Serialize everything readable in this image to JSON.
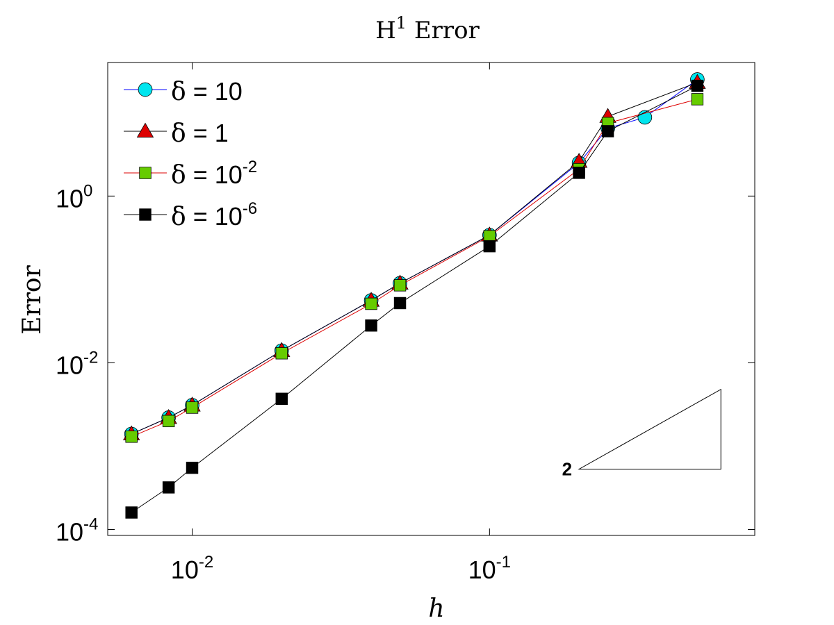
{
  "chart_data": {
    "type": "line",
    "title": {
      "base": "H",
      "sup": "1",
      "rest": " Error"
    },
    "xlabel": "h",
    "ylabel": "Error",
    "xscale": "log",
    "yscale": "log",
    "xlim": [
      0.0052,
      0.78
    ],
    "ylim": [
      8.5e-05,
      40
    ],
    "x_ticks": [
      {
        "value": 0.01,
        "base": "10",
        "exp": "-2"
      },
      {
        "value": 0.1,
        "base": "10",
        "exp": "-1"
      }
    ],
    "y_ticks": [
      {
        "value": 0.0001,
        "base": "10",
        "exp": "-4"
      },
      {
        "value": 0.01,
        "base": "10",
        "exp": "-2"
      },
      {
        "value": 1,
        "base": "10",
        "exp": "0"
      }
    ],
    "legend_position": "top-left",
    "series": [
      {
        "name": {
          "sym": "δ",
          "eq": " = 10",
          "sup": ""
        },
        "color": "#0000ff",
        "marker": "circle",
        "marker_fill": "#00e5ee",
        "x": [
          0.00625,
          0.008333,
          0.01,
          0.02,
          0.04,
          0.05,
          0.1,
          0.2,
          0.25,
          0.333,
          0.5
        ],
        "y": [
          0.0014,
          0.0022,
          0.0031,
          0.014,
          0.056,
          0.09,
          0.34,
          2.5,
          6.5,
          8.8,
          25
        ]
      },
      {
        "name": {
          "sym": "δ",
          "eq": " = 1",
          "sup": ""
        },
        "color": "#000000",
        "marker": "triangle",
        "marker_fill": "#dd0000",
        "x": [
          0.00625,
          0.008333,
          0.01,
          0.02,
          0.04,
          0.05,
          0.1,
          0.2,
          0.25,
          0.5
        ],
        "y": [
          0.0014,
          0.0022,
          0.0031,
          0.014,
          0.056,
          0.09,
          0.34,
          2.6,
          9.0,
          23
        ]
      },
      {
        "name": {
          "sym": "δ",
          "eq": " = 10",
          "sup": "-2"
        },
        "color": "#dd0000",
        "marker": "square",
        "marker_fill": "#66cc00",
        "x": [
          0.00625,
          0.008333,
          0.01,
          0.02,
          0.04,
          0.05,
          0.1,
          0.2,
          0.25,
          0.5
        ],
        "y": [
          0.0013,
          0.002,
          0.0029,
          0.013,
          0.051,
          0.085,
          0.33,
          2.1,
          7.5,
          14.5
        ]
      },
      {
        "name": {
          "sym": "δ",
          "eq": " = 10",
          "sup": "-6"
        },
        "color": "#000000",
        "marker": "square",
        "marker_fill": "#000000",
        "x": [
          0.00625,
          0.008333,
          0.01,
          0.02,
          0.04,
          0.05,
          0.1,
          0.2,
          0.25,
          0.5
        ],
        "y": [
          0.00016,
          0.00032,
          0.00055,
          0.0037,
          0.028,
          0.052,
          0.25,
          1.9,
          6.0,
          21
        ]
      }
    ],
    "slope_triangle": {
      "label": "2",
      "x": [
        0.2,
        0.6
      ],
      "y": [
        0.00053,
        0.0048
      ]
    }
  }
}
